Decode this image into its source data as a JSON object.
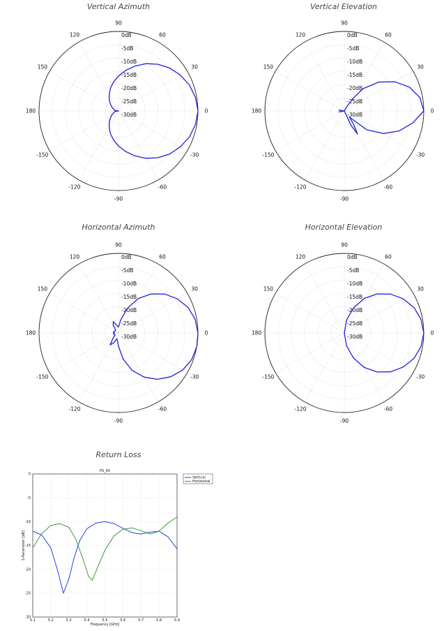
{
  "colors": {
    "vertical": "#2a3ee0",
    "horizontal": "#3a9a3a",
    "pattern": "#1f1fd8"
  },
  "chart_data": [
    {
      "type": "polar",
      "title": "Vertical Azimuth",
      "angle_labels": [
        "90",
        "60",
        "30",
        "0",
        "-30",
        "-60",
        "-90",
        "-120",
        "-150",
        "180",
        "150",
        "120"
      ],
      "radial_labels": [
        "0dB",
        "-5dB",
        "-10dB",
        "-15dB",
        "-20dB",
        "-25dB",
        "-30dB"
      ],
      "rlim": [
        -30,
        0
      ],
      "theta_deg": [
        0,
        10,
        20,
        30,
        40,
        50,
        60,
        70,
        80,
        90,
        100,
        110,
        120,
        130,
        140,
        150,
        160,
        170,
        175,
        180,
        185,
        190,
        200,
        210,
        220,
        230,
        240,
        250,
        260,
        270,
        280,
        290,
        300,
        310,
        320,
        330,
        340,
        350,
        360
      ],
      "r_db": [
        0,
        -0.5,
        -1.5,
        -3,
        -4.8,
        -7,
        -9.4,
        -12,
        -14.5,
        -16.8,
        -19,
        -21,
        -23,
        -24.6,
        -26,
        -27.2,
        -28,
        -28.6,
        -29.5,
        -30,
        -29.5,
        -28.6,
        -28,
        -27.2,
        -26,
        -24.6,
        -23,
        -21,
        -19,
        -16.8,
        -14.5,
        -12,
        -9.4,
        -7,
        -4.8,
        -3,
        -1.5,
        -0.5,
        0
      ]
    },
    {
      "type": "polar",
      "title": "Vertical Elevation",
      "angle_labels": [
        "90",
        "60",
        "30",
        "0",
        "-30",
        "-60",
        "-90",
        "-120",
        "-150",
        "180",
        "150",
        "120"
      ],
      "radial_labels": [
        "0dB",
        "-5dB",
        "-10dB",
        "-15dB",
        "-20dB",
        "-25dB",
        "-30dB"
      ],
      "rlim": [
        -30,
        0
      ],
      "theta_deg": [
        0,
        10,
        20,
        30,
        40,
        50,
        55,
        60,
        65,
        70,
        80,
        100,
        120,
        150,
        170,
        180,
        190,
        210,
        240,
        260,
        280,
        290,
        295,
        300,
        305,
        310,
        320,
        330,
        340,
        350,
        360
      ],
      "r_db": [
        0,
        -1,
        -3.8,
        -8,
        -13,
        -19,
        -24,
        -28,
        -30,
        -30,
        -30,
        -30,
        -30,
        -30,
        -28,
        -30,
        -28,
        -30,
        -30,
        -30,
        -30,
        -30,
        -24,
        -20,
        -24,
        -27,
        -19,
        -13,
        -8,
        -3.8,
        0
      ]
    },
    {
      "type": "polar",
      "title": "Horizontal Azimuth",
      "angle_labels": [
        "90",
        "60",
        "30",
        "0",
        "-30",
        "-60",
        "-90",
        "-120",
        "-150",
        "180",
        "150",
        "120"
      ],
      "radial_labels": [
        "0dB",
        "-5dB",
        "-10dB",
        "-15dB",
        "-20dB",
        "-25dB",
        "-30dB"
      ],
      "rlim": [
        -30,
        0
      ],
      "theta_deg": [
        0,
        10,
        20,
        30,
        40,
        50,
        60,
        70,
        80,
        90,
        105,
        115,
        125,
        135,
        150,
        170,
        180,
        190,
        210,
        225,
        235,
        245,
        255,
        270,
        280,
        290,
        300,
        310,
        320,
        330,
        340,
        350,
        360
      ],
      "r_db": [
        0,
        -0.6,
        -2,
        -4.3,
        -7.2,
        -10.8,
        -15,
        -20,
        -25,
        -27.8,
        -26.8,
        -25.3,
        -26.5,
        -28.5,
        -28.5,
        -28,
        -28.5,
        -28,
        -28.5,
        -27,
        -24.5,
        -26,
        -27.8,
        -25,
        -20,
        -15,
        -10.8,
        -7.2,
        -4.3,
        -2,
        -0.6,
        0,
        0
      ]
    },
    {
      "type": "polar",
      "title": "Horizontal Elevation",
      "angle_labels": [
        "90",
        "60",
        "30",
        "0",
        "-30",
        "-60",
        "-90",
        "-120",
        "-150",
        "180",
        "150",
        "120"
      ],
      "radial_labels": [
        "0dB",
        "-5dB",
        "-10dB",
        "-15dB",
        "-20dB",
        "-25dB",
        "-30dB"
      ],
      "rlim": [
        -30,
        0
      ],
      "theta_deg": [
        0,
        10,
        20,
        30,
        40,
        50,
        60,
        70,
        80,
        90,
        100,
        120,
        150,
        180,
        210,
        240,
        260,
        270,
        280,
        290,
        300,
        310,
        320,
        330,
        340,
        350,
        360
      ],
      "r_db": [
        0,
        -0.6,
        -2,
        -4.3,
        -7.2,
        -10.8,
        -15,
        -20,
        -25,
        -30,
        -30,
        -30,
        -30,
        -30,
        -30,
        -30,
        -30,
        -30,
        -25,
        -20,
        -15,
        -10.8,
        -7.2,
        -4.3,
        -2,
        -0.6,
        0
      ]
    },
    {
      "type": "line",
      "title": "Return Loss",
      "subtitle": "PS_60",
      "xlabel": "Frequency [GHz]",
      "ylabel": "S-Parameter [dB]",
      "xlim": [
        5.1,
        5.9
      ],
      "ylim": [
        -30,
        0
      ],
      "x_ticks": [
        "5.1",
        "5.2",
        "5.3",
        "5.4",
        "5.5",
        "5.6",
        "5.7",
        "5.8",
        "5.9"
      ],
      "y_ticks": [
        "0",
        "-5",
        "-10",
        "-15",
        "-20",
        "-25",
        "-30"
      ],
      "series": [
        {
          "name": "Vertical",
          "x": [
            5.1,
            5.15,
            5.2,
            5.24,
            5.27,
            5.3,
            5.33,
            5.36,
            5.4,
            5.45,
            5.5,
            5.55,
            5.6,
            5.65,
            5.7,
            5.75,
            5.8,
            5.85,
            5.9
          ],
          "y": [
            -12,
            -12.8,
            -15.5,
            -20.5,
            -25,
            -22,
            -17.5,
            -14,
            -11.5,
            -10.3,
            -10,
            -10.4,
            -11.4,
            -12.3,
            -12.6,
            -12.2,
            -12,
            -13.2,
            -15.7
          ]
        },
        {
          "name": "Horizontal",
          "x": [
            5.1,
            5.15,
            5.2,
            5.25,
            5.3,
            5.34,
            5.38,
            5.41,
            5.43,
            5.46,
            5.5,
            5.55,
            5.6,
            5.65,
            5.7,
            5.75,
            5.8,
            5.85,
            5.9
          ],
          "y": [
            -15.5,
            -12.5,
            -10.8,
            -10.4,
            -11.2,
            -13.8,
            -18,
            -21.5,
            -22.3,
            -19.5,
            -16,
            -13,
            -11.6,
            -11.3,
            -11.9,
            -12.6,
            -12,
            -10.3,
            -9
          ]
        }
      ]
    }
  ]
}
